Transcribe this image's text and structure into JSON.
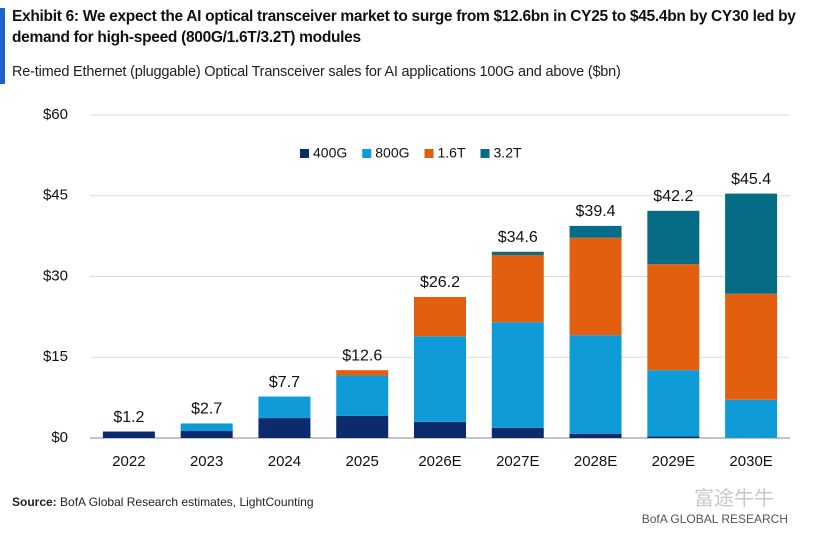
{
  "chart_data": {
    "type": "stacked_bar",
    "title": "Exhibit 6: We expect the AI optical transceiver market to surge from $12.6bn in CY25 to $45.4bn by CY30 led by demand for high-speed (800G/1.6T/3.2T) modules",
    "subtitle": "Re-timed Ethernet (pluggable) Optical Transceiver sales for AI applications 100G and above ($bn)",
    "source_label": "Source:",
    "source": "BofA Global Research estimates, LightCounting",
    "watermark": "富途牛牛",
    "brand": "BofA GLOBAL RESEARCH",
    "categories": [
      "2022",
      "2023",
      "2024",
      "2025",
      "2026E",
      "2027E",
      "2028E",
      "2029E",
      "2030E"
    ],
    "series": [
      {
        "name": "400G",
        "color": "#0b2b6c",
        "values": [
          1.2,
          1.3,
          3.7,
          4.1,
          3.0,
          1.9,
          0.8,
          0.3,
          0
        ]
      },
      {
        "name": "800G",
        "color": "#0e9bd7",
        "values": [
          0,
          1.4,
          4.0,
          7.5,
          15.9,
          19.6,
          18.3,
          12.3,
          7.1
        ]
      },
      {
        "name": "1.6T",
        "color": "#e35f10",
        "values": [
          0,
          0,
          0,
          1.0,
          7.3,
          12.5,
          18.1,
          19.7,
          19.7
        ]
      },
      {
        "name": "3.2T",
        "color": "#066c86",
        "values": [
          0,
          0,
          0,
          0,
          0,
          0.6,
          2.2,
          9.9,
          18.6
        ]
      }
    ],
    "totals": {
      "values": [
        1.2,
        2.7,
        7.7,
        12.6,
        26.2,
        34.6,
        39.4,
        42.2,
        45.4
      ],
      "value_labels": [
        "$1.2",
        "$2.7",
        "$7.7",
        "$12.6",
        "$26.2",
        "$34.6",
        "$39.4",
        "$42.2",
        "$45.4"
      ]
    },
    "ylim": [
      0,
      60
    ],
    "yticks": [
      {
        "value": 0,
        "label": "$0"
      },
      {
        "value": 15,
        "label": "$15"
      },
      {
        "value": 30,
        "label": "$30"
      },
      {
        "value": 45,
        "label": "$45"
      },
      {
        "value": 60,
        "label": "$60"
      }
    ],
    "grid": true
  }
}
